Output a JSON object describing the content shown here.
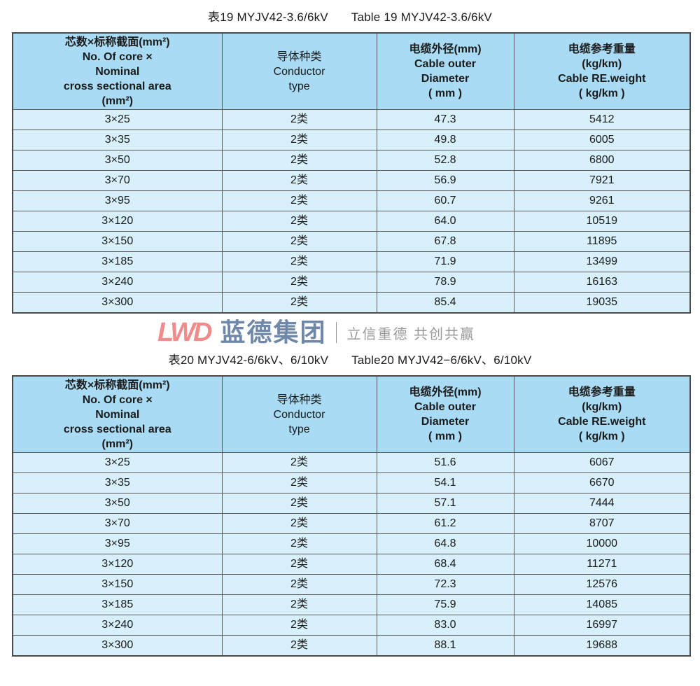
{
  "watermark": {
    "logo": "LWD",
    "company": "蓝德集团",
    "slogan": "立信重德 共创共赢",
    "logo_color": "#f08c8c",
    "company_color": "#6f88aa"
  },
  "colors": {
    "header_bg": "#a9dcf4",
    "row_bg": "#d7f0fb"
  },
  "headers": {
    "col1": [
      "芯数×标称截面(mm²)",
      "No. Of core ×",
      "Nominal",
      "cross sectional area",
      "(mm²)"
    ],
    "col2": [
      "导体种类",
      "Conductor",
      "type"
    ],
    "col3": [
      "电缆外径(mm)",
      "Cable outer",
      "Diameter",
      "( mm )"
    ],
    "col4": [
      "电缆参考重量",
      "(kg/km)",
      "Cable RE.weight",
      "( kg/km )"
    ]
  },
  "tables": [
    {
      "title_cn": "表19  MYJV42-3.6/6kV",
      "title_en": "Table 19 MYJV42-3.6/6kV",
      "rows": [
        [
          "3×25",
          "2类",
          "47.3",
          "5412"
        ],
        [
          "3×35",
          "2类",
          "49.8",
          "6005"
        ],
        [
          "3×50",
          "2类",
          "52.8",
          "6800"
        ],
        [
          "3×70",
          "2类",
          "56.9",
          "7921"
        ],
        [
          "3×95",
          "2类",
          "60.7",
          "9261"
        ],
        [
          "3×120",
          "2类",
          "64.0",
          "10519"
        ],
        [
          "3×150",
          "2类",
          "67.8",
          "11895"
        ],
        [
          "3×185",
          "2类",
          "71.9",
          "13499"
        ],
        [
          "3×240",
          "2类",
          "78.9",
          "16163"
        ],
        [
          "3×300",
          "2类",
          "85.4",
          "19035"
        ]
      ]
    },
    {
      "title_cn": "表20  MYJV42-6/6kV、6/10kV",
      "title_en": "Table20 MYJV42−6/6kV、6/10kV",
      "rows": [
        [
          "3×25",
          "2类",
          "51.6",
          "6067"
        ],
        [
          "3×35",
          "2类",
          "54.1",
          "6670"
        ],
        [
          "3×50",
          "2类",
          "57.1",
          "7444"
        ],
        [
          "3×70",
          "2类",
          "61.2",
          "8707"
        ],
        [
          "3×95",
          "2类",
          "64.8",
          "10000"
        ],
        [
          "3×120",
          "2类",
          "68.4",
          "11271"
        ],
        [
          "3×150",
          "2类",
          "72.3",
          "12576"
        ],
        [
          "3×185",
          "2类",
          "75.9",
          "14085"
        ],
        [
          "3×240",
          "2类",
          "83.0",
          "16997"
        ],
        [
          "3×300",
          "2类",
          "88.1",
          "19688"
        ]
      ]
    }
  ]
}
